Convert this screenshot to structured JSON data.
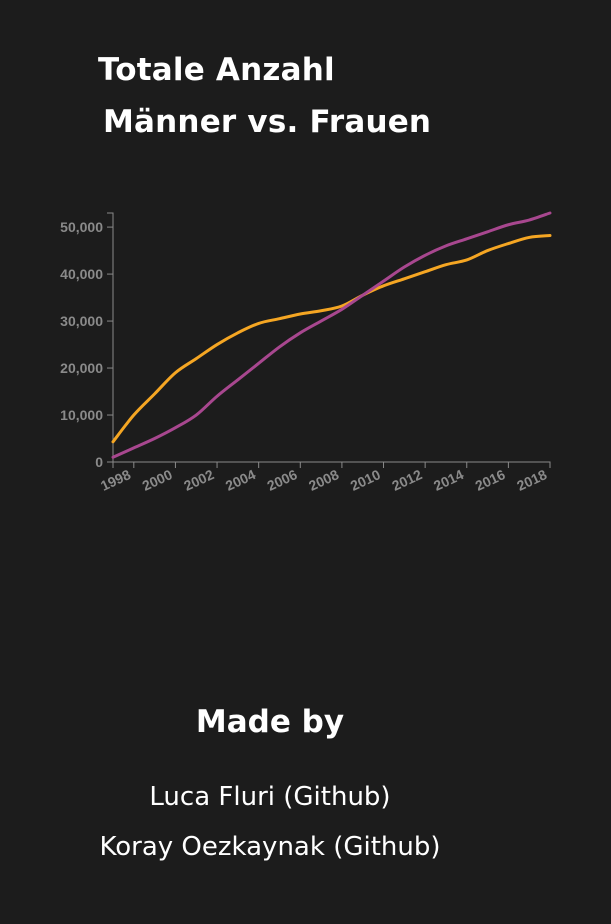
{
  "header": {
    "title_line1": "Totale Anzahl",
    "title_line2": "Männer vs. Frauen"
  },
  "chart_data": {
    "type": "line",
    "grid": false,
    "xlim": [
      1997,
      2018
    ],
    "ylim": [
      0,
      53000
    ],
    "x_ticks": [
      1998,
      2000,
      2002,
      2004,
      2006,
      2008,
      2010,
      2012,
      2014,
      2016,
      2018
    ],
    "y_ticks": [
      0,
      10000,
      20000,
      30000,
      40000,
      50000
    ],
    "y_tick_labels": [
      "0",
      "10,000",
      "20,000",
      "30,000",
      "40,000",
      "50,000"
    ],
    "x": [
      1997,
      1998,
      1999,
      2000,
      2001,
      2002,
      2003,
      2004,
      2005,
      2006,
      2007,
      2008,
      2009,
      2010,
      2011,
      2012,
      2013,
      2014,
      2015,
      2016,
      2017,
      2018
    ],
    "series": [
      {
        "color": "#f5a623",
        "values": [
          4300,
          10000,
          14500,
          19000,
          22000,
          25000,
          27500,
          29500,
          30500,
          31500,
          32200,
          33200,
          35500,
          37500,
          39000,
          40500,
          42000,
          43000,
          45000,
          46500,
          47800,
          48200
        ]
      },
      {
        "color": "#a8478f",
        "values": [
          1000,
          3000,
          5000,
          7300,
          10000,
          14000,
          17500,
          21000,
          24500,
          27500,
          30000,
          32500,
          35500,
          38500,
          41500,
          44000,
          46000,
          47500,
          49000,
          50500,
          51500,
          53000
        ]
      }
    ]
  },
  "credits": {
    "heading": "Made by",
    "people": [
      {
        "name": "Luca Fluri",
        "link": "(Github)"
      },
      {
        "name": "Koray Oezkaynak",
        "link": "(Github)"
      }
    ]
  }
}
